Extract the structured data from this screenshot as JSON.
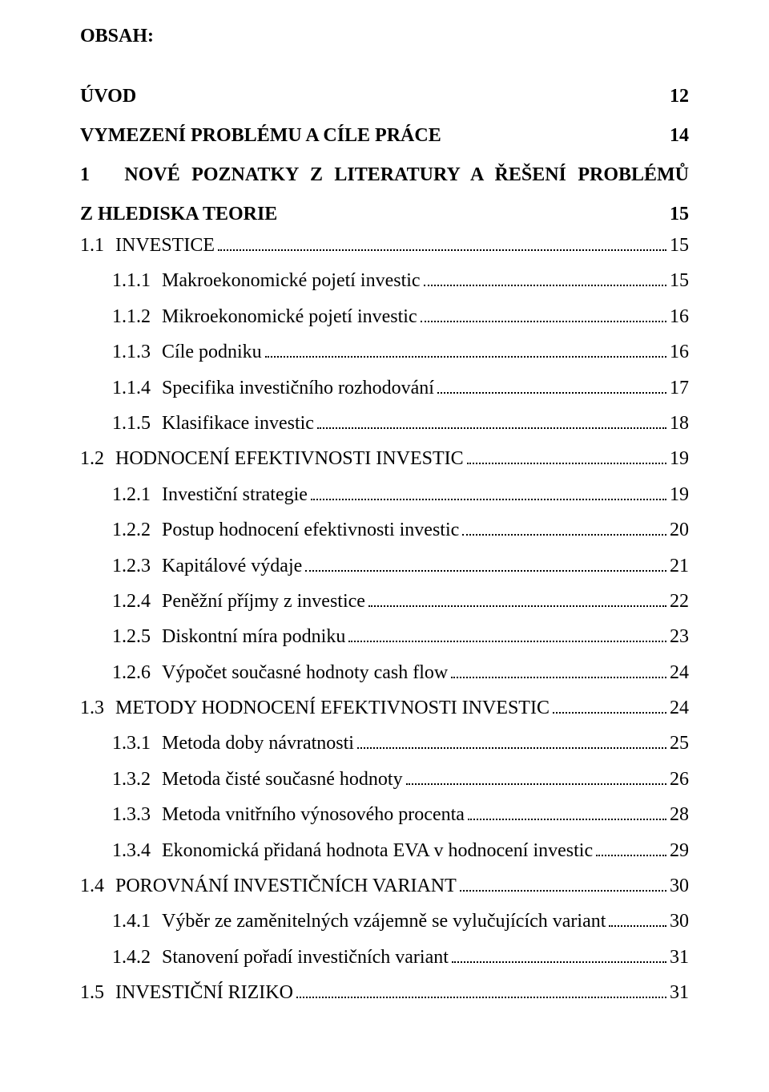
{
  "colors": {
    "text": "#000000",
    "background": "#ffffff",
    "leader": "#000000"
  },
  "typography": {
    "font_family": "Times New Roman",
    "body_fontsize_pt": 18,
    "heading_fontsize_pt": 18,
    "line_height": 1.6
  },
  "heading": "OBSAH:",
  "chapters": {
    "uvod": {
      "label": "ÚVOD",
      "page": "12"
    },
    "vymezeni": {
      "label": "VYMEZENÍ PROBLÉMU A CÍLE PRÁCE",
      "page": "14"
    },
    "poznatky": {
      "num": "1",
      "label_justified": "NOVÉ POZNATKY Z LITERATURY A ŘEŠENÍ PROBLÉMŮ",
      "line2_label": "Z HLEDISKA TEORIE",
      "line2_page": "15"
    }
  },
  "toc": [
    {
      "indent": 1,
      "num": "1.1",
      "label": "INVESTICE",
      "page": "15"
    },
    {
      "indent": 2,
      "num": "1.1.1",
      "label": "Makroekonomické pojetí investic",
      "page": "15"
    },
    {
      "indent": 2,
      "num": "1.1.2",
      "label": "Mikroekonomické pojetí investic",
      "page": "16"
    },
    {
      "indent": 2,
      "num": "1.1.3",
      "label": "Cíle podniku",
      "page": "16"
    },
    {
      "indent": 2,
      "num": "1.1.4",
      "label": "Specifika investičního rozhodování",
      "page": "17"
    },
    {
      "indent": 2,
      "num": "1.1.5",
      "label": "Klasifikace investic",
      "page": "18"
    },
    {
      "indent": 1,
      "num": "1.2",
      "label": "HODNOCENÍ EFEKTIVNOSTI INVESTIC",
      "page": "19"
    },
    {
      "indent": 2,
      "num": "1.2.1",
      "label": "Investiční strategie",
      "page": "19"
    },
    {
      "indent": 2,
      "num": "1.2.2",
      "label": "Postup hodnocení efektivnosti investic",
      "page": "20"
    },
    {
      "indent": 2,
      "num": "1.2.3",
      "label": "Kapitálové výdaje",
      "page": "21"
    },
    {
      "indent": 2,
      "num": "1.2.4",
      "label": "Peněžní příjmy z investice",
      "page": "22"
    },
    {
      "indent": 2,
      "num": "1.2.5",
      "label": "Diskontní míra podniku",
      "page": "23"
    },
    {
      "indent": 2,
      "num": "1.2.6",
      "label": "Výpočet současné hodnoty cash flow",
      "page": "24"
    },
    {
      "indent": 1,
      "num": "1.3",
      "label": "METODY HODNOCENÍ EFEKTIVNOSTI INVESTIC",
      "page": "24"
    },
    {
      "indent": 2,
      "num": "1.3.1",
      "label": "Metoda doby návratnosti",
      "page": "25"
    },
    {
      "indent": 2,
      "num": "1.3.2",
      "label": "Metoda čisté současné hodnoty",
      "page": "26"
    },
    {
      "indent": 2,
      "num": "1.3.3",
      "label": "Metoda vnitřního výnosového procenta",
      "page": "28"
    },
    {
      "indent": 2,
      "num": "1.3.4",
      "label": "Ekonomická přidaná hodnota EVA v hodnocení investic",
      "page": "29"
    },
    {
      "indent": 1,
      "num": "1.4",
      "label": "POROVNÁNÍ INVESTIČNÍCH VARIANT",
      "page": "30"
    },
    {
      "indent": 2,
      "num": "1.4.1",
      "label": "Výběr ze zaměnitelných vzájemně se vylučujících variant",
      "page": "30"
    },
    {
      "indent": 2,
      "num": "1.4.2",
      "label": "Stanovení pořadí investičních variant",
      "page": "31"
    },
    {
      "indent": 1,
      "num": "1.5",
      "label": "INVESTIČNÍ RIZIKO",
      "page": "31"
    }
  ]
}
